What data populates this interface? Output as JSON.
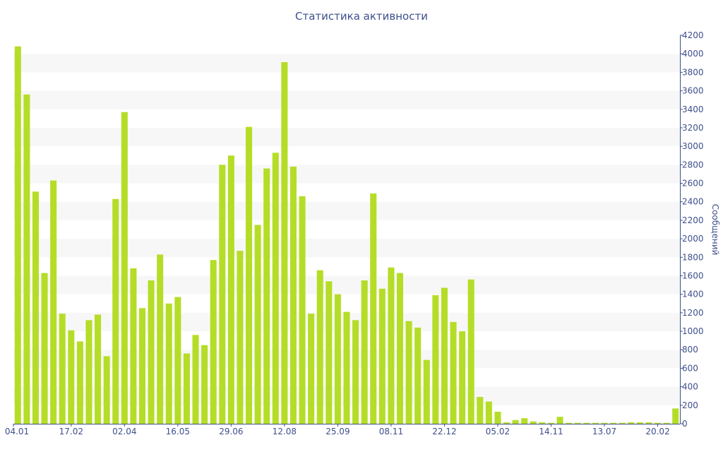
{
  "chart_data": {
    "type": "bar",
    "title": "Статистика активности",
    "ylabel": "Сообщений",
    "xlabel": "",
    "ylim": [
      0,
      4200
    ],
    "y_ticks": [
      0,
      200,
      400,
      600,
      800,
      1000,
      1200,
      1400,
      1600,
      1800,
      2000,
      2200,
      2400,
      2600,
      2800,
      3000,
      3200,
      3400,
      3600,
      3800,
      4000,
      4200
    ],
    "y_axis_side": "right",
    "grid": "horizontal bands",
    "bar_color": "#b5dd27",
    "x_tick_labels": [
      {
        "index": 0,
        "label": "04.01"
      },
      {
        "index": 6,
        "label": "17.02"
      },
      {
        "index": 12,
        "label": "02.04"
      },
      {
        "index": 18,
        "label": "16.05"
      },
      {
        "index": 24,
        "label": "29.06"
      },
      {
        "index": 30,
        "label": "12.08"
      },
      {
        "index": 36,
        "label": "25.09"
      },
      {
        "index": 42,
        "label": "08.11"
      },
      {
        "index": 48,
        "label": "22.12"
      },
      {
        "index": 54,
        "label": "05.02"
      },
      {
        "index": 60,
        "label": "14.11"
      },
      {
        "index": 66,
        "label": "13.07"
      },
      {
        "index": 72,
        "label": "20.02"
      }
    ],
    "values": [
      4080,
      3560,
      2510,
      1630,
      2630,
      1190,
      1010,
      890,
      1120,
      1180,
      730,
      2430,
      3370,
      1680,
      1250,
      1550,
      1830,
      1300,
      1370,
      760,
      960,
      850,
      1770,
      2800,
      2900,
      1870,
      3210,
      2150,
      2760,
      2930,
      3910,
      2780,
      2460,
      1190,
      1660,
      1540,
      1400,
      1210,
      1120,
      1550,
      2490,
      1460,
      1690,
      1630,
      1110,
      1040,
      690,
      1390,
      1470,
      1100,
      1000,
      1560,
      290,
      240,
      130,
      15,
      40,
      60,
      25,
      15,
      10,
      75,
      10,
      10,
      10,
      10,
      10,
      10,
      10,
      15,
      15,
      15,
      10,
      10,
      165
    ]
  }
}
